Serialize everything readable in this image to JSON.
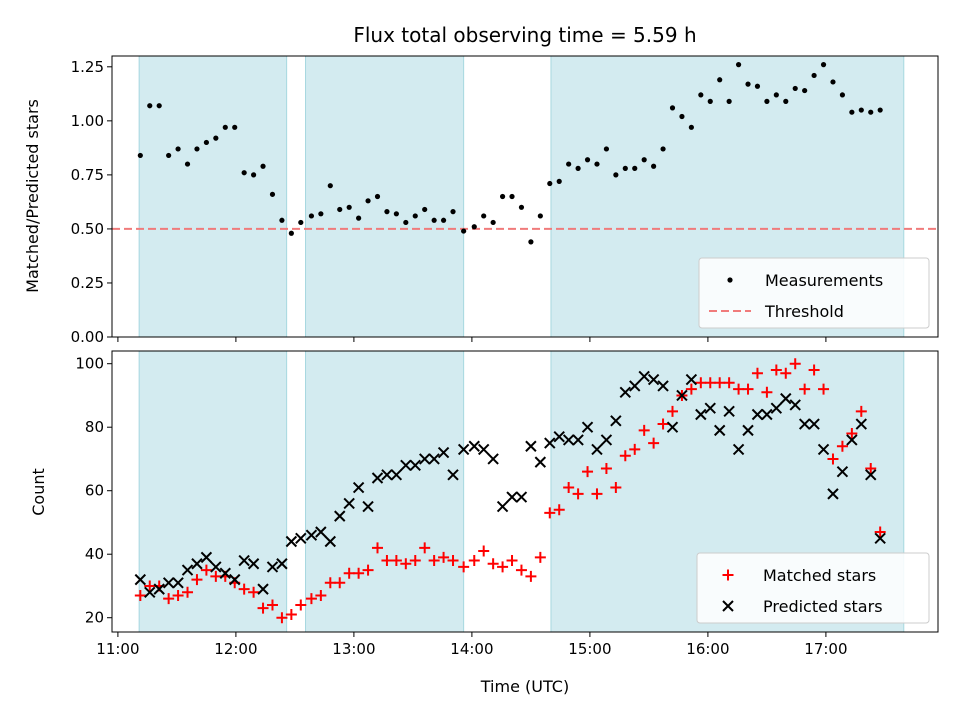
{
  "colors": {
    "band": "#d3ebf0",
    "band_edge": "#a7d8e0",
    "threshold": "#f07b7b",
    "measurement": "#000000",
    "matched": "#ff0000",
    "predicted": "#000000"
  },
  "chart_data": [
    {
      "id": "ratio",
      "type": "scatter",
      "title": "Flux total observing time = 5.59 h",
      "xlabel": "",
      "ylabel": "Matched/Predicted stars",
      "xlim": [
        10.95,
        17.95
      ],
      "ylim": [
        0,
        1.3
      ],
      "yticks": [
        "0.00",
        "0.25",
        "0.50",
        "0.75",
        "1.00",
        "1.25"
      ],
      "xticks": [
        "11:00",
        "12:00",
        "13:00",
        "14:00",
        "15:00",
        "16:00",
        "17:00"
      ],
      "bands": [
        [
          11.18,
          12.43
        ],
        [
          12.59,
          13.93
        ],
        [
          14.67,
          17.66
        ]
      ],
      "threshold": 0.5,
      "legend": {
        "position": "lower-right",
        "entries": [
          "Measurements",
          "Threshold"
        ]
      },
      "series": [
        {
          "name": "Measurements",
          "marker": "dot",
          "points": [
            [
              11.19,
              0.84
            ],
            [
              11.27,
              1.07
            ],
            [
              11.35,
              1.07
            ],
            [
              11.43,
              0.84
            ],
            [
              11.51,
              0.87
            ],
            [
              11.59,
              0.8
            ],
            [
              11.67,
              0.87
            ],
            [
              11.75,
              0.9
            ],
            [
              11.83,
              0.92
            ],
            [
              11.91,
              0.97
            ],
            [
              11.99,
              0.97
            ],
            [
              12.07,
              0.76
            ],
            [
              12.15,
              0.75
            ],
            [
              12.23,
              0.79
            ],
            [
              12.31,
              0.66
            ],
            [
              12.39,
              0.54
            ],
            [
              12.47,
              0.48
            ],
            [
              12.55,
              0.53
            ],
            [
              12.64,
              0.56
            ],
            [
              12.72,
              0.57
            ],
            [
              12.8,
              0.7
            ],
            [
              12.88,
              0.59
            ],
            [
              12.96,
              0.6
            ],
            [
              13.04,
              0.55
            ],
            [
              13.12,
              0.63
            ],
            [
              13.2,
              0.65
            ],
            [
              13.28,
              0.58
            ],
            [
              13.36,
              0.57
            ],
            [
              13.44,
              0.53
            ],
            [
              13.52,
              0.56
            ],
            [
              13.6,
              0.59
            ],
            [
              13.68,
              0.54
            ],
            [
              13.76,
              0.54
            ],
            [
              13.84,
              0.58
            ],
            [
              13.93,
              0.49
            ],
            [
              14.02,
              0.51
            ],
            [
              14.1,
              0.56
            ],
            [
              14.18,
              0.53
            ],
            [
              14.26,
              0.65
            ],
            [
              14.34,
              0.65
            ],
            [
              14.42,
              0.6
            ],
            [
              14.5,
              0.44
            ],
            [
              14.58,
              0.56
            ],
            [
              14.66,
              0.71
            ],
            [
              14.74,
              0.72
            ],
            [
              14.82,
              0.8
            ],
            [
              14.9,
              0.78
            ],
            [
              14.98,
              0.82
            ],
            [
              15.06,
              0.8
            ],
            [
              15.14,
              0.87
            ],
            [
              15.22,
              0.75
            ],
            [
              15.3,
              0.78
            ],
            [
              15.38,
              0.78
            ],
            [
              15.46,
              0.82
            ],
            [
              15.54,
              0.79
            ],
            [
              15.62,
              0.87
            ],
            [
              15.7,
              1.06
            ],
            [
              15.78,
              1.02
            ],
            [
              15.86,
              0.97
            ],
            [
              15.94,
              1.12
            ],
            [
              16.02,
              1.09
            ],
            [
              16.1,
              1.19
            ],
            [
              16.18,
              1.09
            ],
            [
              16.26,
              1.26
            ],
            [
              16.34,
              1.17
            ],
            [
              16.42,
              1.16
            ],
            [
              16.5,
              1.09
            ],
            [
              16.58,
              1.12
            ],
            [
              16.66,
              1.09
            ],
            [
              16.74,
              1.15
            ],
            [
              16.82,
              1.14
            ],
            [
              16.9,
              1.21
            ],
            [
              16.98,
              1.26
            ],
            [
              17.06,
              1.18
            ],
            [
              17.14,
              1.12
            ],
            [
              17.22,
              1.04
            ],
            [
              17.3,
              1.05
            ],
            [
              17.38,
              1.04
            ],
            [
              17.46,
              1.05
            ]
          ]
        }
      ]
    },
    {
      "id": "counts",
      "type": "scatter",
      "title": "",
      "xlabel": "Time (UTC)",
      "ylabel": "Count",
      "xlim": [
        10.95,
        17.95
      ],
      "ylim": [
        15.5,
        104
      ],
      "yticks": [
        "20",
        "40",
        "60",
        "80",
        "100"
      ],
      "xticks": [
        "11:00",
        "12:00",
        "13:00",
        "14:00",
        "15:00",
        "16:00",
        "17:00"
      ],
      "bands": [
        [
          11.18,
          12.43
        ],
        [
          12.59,
          13.93
        ],
        [
          14.67,
          17.66
        ]
      ],
      "legend": {
        "position": "lower-right",
        "entries": [
          "Matched stars",
          "Predicted stars"
        ]
      },
      "series": [
        {
          "name": "Matched stars",
          "marker": "plus",
          "points": [
            [
              11.19,
              27
            ],
            [
              11.27,
              30
            ],
            [
              11.35,
              30
            ],
            [
              11.43,
              26
            ],
            [
              11.51,
              27
            ],
            [
              11.59,
              28
            ],
            [
              11.67,
              32
            ],
            [
              11.75,
              35
            ],
            [
              11.83,
              33
            ],
            [
              11.91,
              33
            ],
            [
              11.99,
              31
            ],
            [
              12.07,
              29
            ],
            [
              12.15,
              28
            ],
            [
              12.23,
              23
            ],
            [
              12.31,
              24
            ],
            [
              12.39,
              20
            ],
            [
              12.47,
              21
            ],
            [
              12.55,
              24
            ],
            [
              12.64,
              26
            ],
            [
              12.72,
              27
            ],
            [
              12.8,
              31
            ],
            [
              12.88,
              31
            ],
            [
              12.96,
              34
            ],
            [
              13.04,
              34
            ],
            [
              13.12,
              35
            ],
            [
              13.2,
              42
            ],
            [
              13.28,
              38
            ],
            [
              13.36,
              38
            ],
            [
              13.44,
              37
            ],
            [
              13.52,
              38
            ],
            [
              13.6,
              42
            ],
            [
              13.68,
              38
            ],
            [
              13.76,
              39
            ],
            [
              13.84,
              38
            ],
            [
              13.93,
              36
            ],
            [
              14.02,
              38
            ],
            [
              14.1,
              41
            ],
            [
              14.18,
              37
            ],
            [
              14.26,
              36
            ],
            [
              14.34,
              38
            ],
            [
              14.42,
              35
            ],
            [
              14.5,
              33
            ],
            [
              14.58,
              39
            ],
            [
              14.66,
              53
            ],
            [
              14.74,
              54
            ],
            [
              14.82,
              61
            ],
            [
              14.9,
              59
            ],
            [
              14.98,
              66
            ],
            [
              15.06,
              59
            ],
            [
              15.14,
              67
            ],
            [
              15.22,
              61
            ],
            [
              15.3,
              71
            ],
            [
              15.38,
              73
            ],
            [
              15.46,
              79
            ],
            [
              15.54,
              75
            ],
            [
              15.62,
              81
            ],
            [
              15.7,
              85
            ],
            [
              15.78,
              90
            ],
            [
              15.86,
              92
            ],
            [
              15.94,
              94
            ],
            [
              16.02,
              94
            ],
            [
              16.1,
              94
            ],
            [
              16.18,
              94
            ],
            [
              16.26,
              92
            ],
            [
              16.34,
              92
            ],
            [
              16.42,
              97
            ],
            [
              16.5,
              91
            ],
            [
              16.58,
              98
            ],
            [
              16.66,
              97
            ],
            [
              16.74,
              100
            ],
            [
              16.82,
              92
            ],
            [
              16.9,
              98
            ],
            [
              16.98,
              92
            ],
            [
              17.06,
              70
            ],
            [
              17.14,
              74
            ],
            [
              17.22,
              78
            ],
            [
              17.3,
              85
            ],
            [
              17.38,
              67
            ],
            [
              17.46,
              47
            ]
          ]
        },
        {
          "name": "Predicted stars",
          "marker": "cross",
          "points": [
            [
              11.19,
              32
            ],
            [
              11.27,
              28
            ],
            [
              11.35,
              29
            ],
            [
              11.43,
              31
            ],
            [
              11.51,
              31
            ],
            [
              11.59,
              35
            ],
            [
              11.67,
              37
            ],
            [
              11.75,
              39
            ],
            [
              11.83,
              36
            ],
            [
              11.91,
              34
            ],
            [
              11.99,
              32
            ],
            [
              12.07,
              38
            ],
            [
              12.15,
              37
            ],
            [
              12.23,
              29
            ],
            [
              12.31,
              36
            ],
            [
              12.39,
              37
            ],
            [
              12.47,
              44
            ],
            [
              12.55,
              45
            ],
            [
              12.64,
              46
            ],
            [
              12.72,
              47
            ],
            [
              12.8,
              44
            ],
            [
              12.88,
              52
            ],
            [
              12.96,
              56
            ],
            [
              13.04,
              61
            ],
            [
              13.12,
              55
            ],
            [
              13.2,
              64
            ],
            [
              13.28,
              65
            ],
            [
              13.36,
              65
            ],
            [
              13.44,
              68
            ],
            [
              13.52,
              68
            ],
            [
              13.6,
              70
            ],
            [
              13.68,
              70
            ],
            [
              13.76,
              72
            ],
            [
              13.84,
              65
            ],
            [
              13.93,
              73
            ],
            [
              14.02,
              74
            ],
            [
              14.1,
              73
            ],
            [
              14.18,
              70
            ],
            [
              14.26,
              55
            ],
            [
              14.34,
              58
            ],
            [
              14.42,
              58
            ],
            [
              14.5,
              74
            ],
            [
              14.58,
              69
            ],
            [
              14.66,
              75
            ],
            [
              14.74,
              77
            ],
            [
              14.82,
              76
            ],
            [
              14.9,
              76
            ],
            [
              14.98,
              80
            ],
            [
              15.06,
              73
            ],
            [
              15.14,
              76
            ],
            [
              15.22,
              82
            ],
            [
              15.3,
              91
            ],
            [
              15.38,
              93
            ],
            [
              15.46,
              96
            ],
            [
              15.54,
              95
            ],
            [
              15.62,
              93
            ],
            [
              15.7,
              80
            ],
            [
              15.78,
              90
            ],
            [
              15.86,
              95
            ],
            [
              15.94,
              84
            ],
            [
              16.02,
              86
            ],
            [
              16.1,
              79
            ],
            [
              16.18,
              85
            ],
            [
              16.26,
              73
            ],
            [
              16.34,
              79
            ],
            [
              16.42,
              84
            ],
            [
              16.5,
              84
            ],
            [
              16.58,
              86
            ],
            [
              16.66,
              89
            ],
            [
              16.74,
              87
            ],
            [
              16.82,
              81
            ],
            [
              16.9,
              81
            ],
            [
              16.98,
              73
            ],
            [
              17.06,
              59
            ],
            [
              17.14,
              66
            ],
            [
              17.22,
              76
            ],
            [
              17.3,
              81
            ],
            [
              17.38,
              65
            ],
            [
              17.46,
              45
            ]
          ]
        }
      ]
    }
  ]
}
